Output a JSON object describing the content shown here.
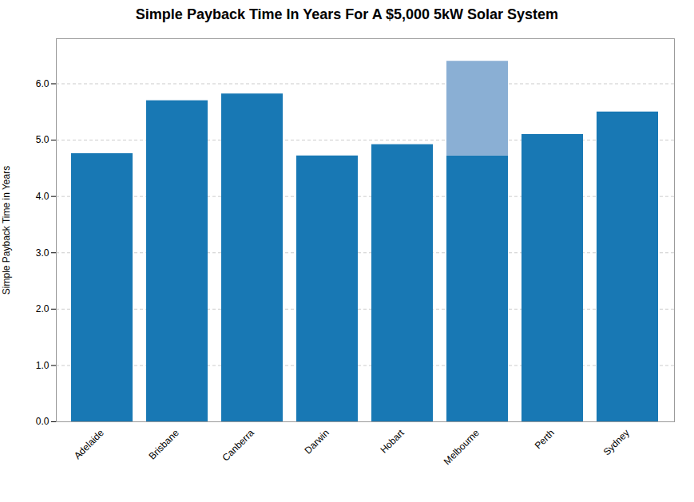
{
  "chart_data": {
    "type": "bar",
    "title": "Simple Payback Time In Years For A $5,000 5kW Solar System",
    "ylabel": "Simple Payback Time in Years",
    "categories": [
      "Adelaide",
      "Brisbane",
      "Canberra",
      "Darwin",
      "Hobart",
      "Melbourne",
      "Perth",
      "Sydney"
    ],
    "series": [
      {
        "color": "#1878b4",
        "values": [
          4.76,
          5.7,
          5.82,
          4.72,
          4.92,
          4.72,
          5.1,
          5.5
        ]
      },
      {
        "color": "#8aafd4",
        "values": [
          null,
          null,
          null,
          null,
          null,
          1.68,
          null,
          null
        ]
      }
    ],
    "stacked": true,
    "ylim": [
      0,
      6.8
    ],
    "yticks": [
      0,
      1,
      2,
      3,
      4,
      5,
      6
    ],
    "grid": true
  }
}
